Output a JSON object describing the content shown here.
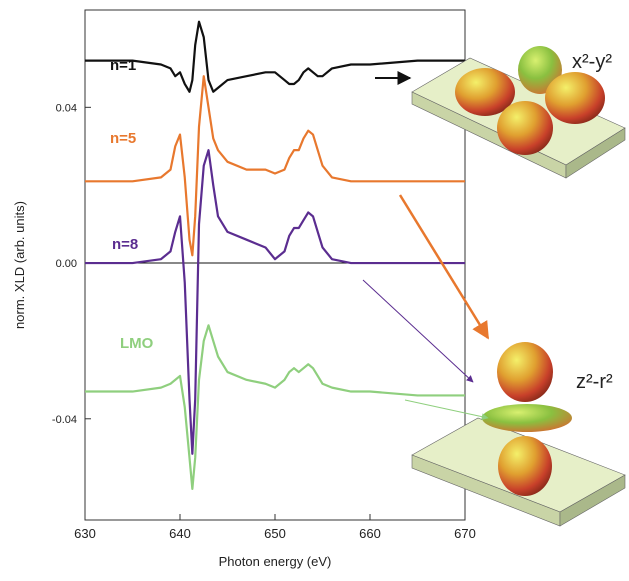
{
  "chart_data": {
    "type": "line",
    "xlabel": "Photon energy (eV)",
    "ylabel": "norm. XLD (arb. units)",
    "x": [
      630,
      635,
      638,
      639,
      639.5,
      640,
      640.5,
      641,
      641.3,
      641.6,
      642,
      642.5,
      643,
      643.5,
      644,
      645,
      647,
      649,
      650,
      651,
      651.5,
      652,
      652.5,
      653,
      653.5,
      654,
      654.5,
      655,
      656,
      658,
      660,
      665,
      670
    ],
    "series": [
      {
        "name": "n=1",
        "color": "#111111",
        "values": [
          0.052,
          0.052,
          0.051,
          0.05,
          0.048,
          0.049,
          0.046,
          0.044,
          0.047,
          0.056,
          0.062,
          0.058,
          0.047,
          0.044,
          0.045,
          0.047,
          0.048,
          0.049,
          0.049,
          0.047,
          0.046,
          0.046,
          0.047,
          0.049,
          0.05,
          0.049,
          0.048,
          0.048,
          0.05,
          0.051,
          0.051,
          0.052,
          0.052
        ]
      },
      {
        "name": "n=5",
        "color": "#e8782e",
        "values": [
          0.021,
          0.021,
          0.022,
          0.024,
          0.03,
          0.033,
          0.022,
          0.006,
          0.002,
          0.012,
          0.035,
          0.048,
          0.04,
          0.032,
          0.029,
          0.026,
          0.024,
          0.024,
          0.023,
          0.024,
          0.027,
          0.029,
          0.029,
          0.032,
          0.034,
          0.033,
          0.029,
          0.025,
          0.022,
          0.021,
          0.021,
          0.021,
          0.021
        ]
      },
      {
        "name": "n=8",
        "color": "#5b2d90",
        "values": [
          0,
          0,
          0.001,
          0.003,
          0.008,
          0.012,
          -0.005,
          -0.035,
          -0.049,
          -0.035,
          0.01,
          0.025,
          0.029,
          0.02,
          0.012,
          0.008,
          0.006,
          0.004,
          0.001,
          0.003,
          0.007,
          0.009,
          0.009,
          0.011,
          0.013,
          0.012,
          0.008,
          0.004,
          0.001,
          0,
          0,
          0,
          0
        ]
      },
      {
        "name": "LMO",
        "color": "#8fcf7e",
        "values": [
          -0.033,
          -0.033,
          -0.032,
          -0.031,
          -0.03,
          -0.029,
          -0.037,
          -0.05,
          -0.058,
          -0.05,
          -0.03,
          -0.02,
          -0.016,
          -0.02,
          -0.024,
          -0.028,
          -0.03,
          -0.031,
          -0.032,
          -0.03,
          -0.028,
          -0.027,
          -0.028,
          -0.027,
          -0.026,
          -0.027,
          -0.029,
          -0.031,
          -0.032,
          -0.033,
          -0.033,
          -0.034,
          -0.034
        ]
      }
    ],
    "xlim": [
      630,
      670
    ],
    "xticks": [
      630,
      640,
      650,
      660,
      670
    ],
    "ylim": [
      -0.066,
      0.065
    ],
    "yticks": [
      -0.04,
      {
        "value": 0,
        "label": "0.00"
      },
      0.04
    ],
    "annotations": [
      "x²-y²",
      "z²-r²"
    ]
  }
}
